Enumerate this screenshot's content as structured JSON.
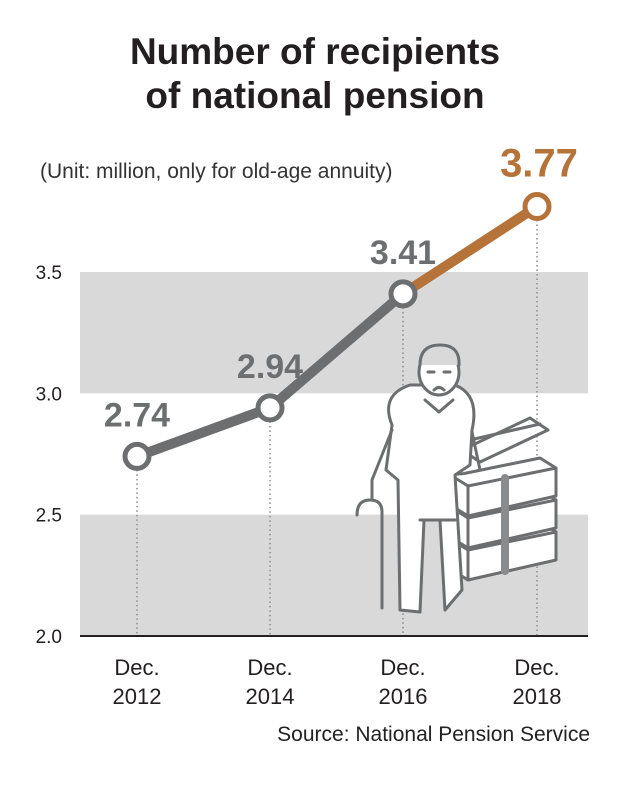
{
  "title": {
    "line1": "Number of recipients",
    "line2": "of national pension"
  },
  "subtitle": "(Unit: million, only for old-age annuity)",
  "source": "Source: National Pension Service",
  "colors": {
    "main_line": "#6d6e70",
    "highlight_line": "#b5733a",
    "band": "#d9d9da",
    "axis": "#231f20",
    "label": "#6d6e70",
    "highlight_label": "#b5733a"
  },
  "illustration": "elderly-man-with-cane-and-stacked-banknotes",
  "chart_data": {
    "type": "line",
    "categories": [
      [
        "Dec.",
        "2012"
      ],
      [
        "Dec.",
        "2014"
      ],
      [
        "Dec.",
        "2016"
      ],
      [
        "Dec.",
        "2018"
      ]
    ],
    "series": [
      {
        "values": [
          2.74,
          2.94,
          3.41,
          3.77
        ],
        "labels": [
          "2.74",
          "2.94",
          "3.41",
          "3.77"
        ]
      }
    ],
    "highlight_last_segment": true,
    "yticks": [
      "2.0",
      "2.5",
      "3.0",
      "3.5"
    ],
    "ytick_values": [
      2.0,
      2.5,
      3.0,
      3.5
    ],
    "ylim": [
      2.0,
      3.5
    ],
    "grid": "alternating-bands",
    "unit": "million"
  }
}
